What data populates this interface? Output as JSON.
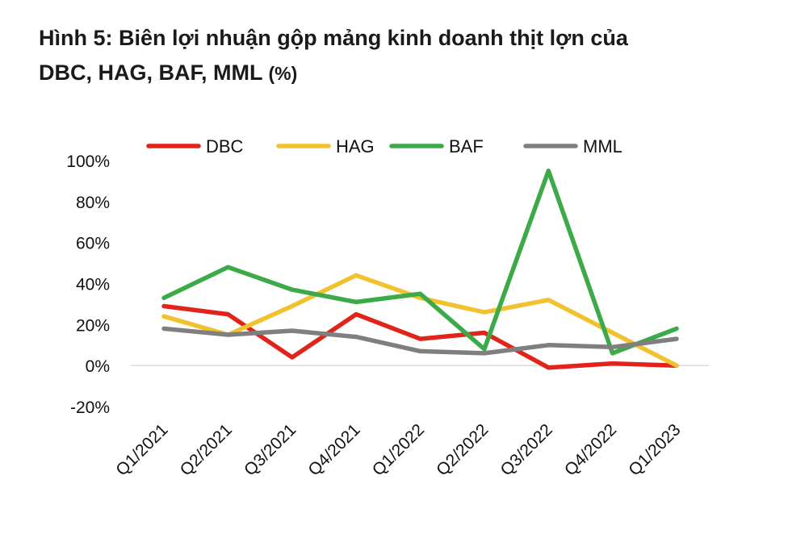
{
  "title": {
    "line1": "Hình 5: Biên lợi nhuận gộp mảng kinh doanh thịt lợn của",
    "line2": "DBC, HAG, BAF, MML",
    "unit": "(%)"
  },
  "chart_data": {
    "type": "line",
    "title": "Hình 5: Biên lợi nhuận gộp mảng kinh doanh thịt lợn của DBC, HAG, BAF, MML (%)",
    "xlabel": "",
    "ylabel": "",
    "categories": [
      "Q1/2021",
      "Q2/2021",
      "Q3/2021",
      "Q4/2021",
      "Q1/2022",
      "Q2/2022",
      "Q3/2022",
      "Q4/2022",
      "Q1/2023"
    ],
    "y_ticks": [
      100,
      80,
      60,
      40,
      20,
      0,
      -20
    ],
    "y_tick_labels": [
      "100%",
      "80%",
      "60%",
      "40%",
      "20%",
      "0%",
      "-20%"
    ],
    "ylim": [
      -20,
      100
    ],
    "grid": false,
    "legend_position": "top",
    "series": [
      {
        "name": "DBC",
        "color": "#e2231a",
        "values": [
          29,
          25,
          4,
          25,
          13,
          16,
          -1,
          1,
          0
        ]
      },
      {
        "name": "HAG",
        "color": "#f2c12e",
        "values": [
          24,
          15,
          29,
          44,
          33,
          26,
          32,
          16,
          0
        ]
      },
      {
        "name": "BAF",
        "color": "#3daa4a",
        "values": [
          33,
          48,
          37,
          31,
          35,
          8,
          95,
          6,
          18
        ]
      },
      {
        "name": "MML",
        "color": "#7f7f7f",
        "values": [
          18,
          15,
          17,
          14,
          7,
          6,
          10,
          9,
          13
        ]
      }
    ]
  }
}
